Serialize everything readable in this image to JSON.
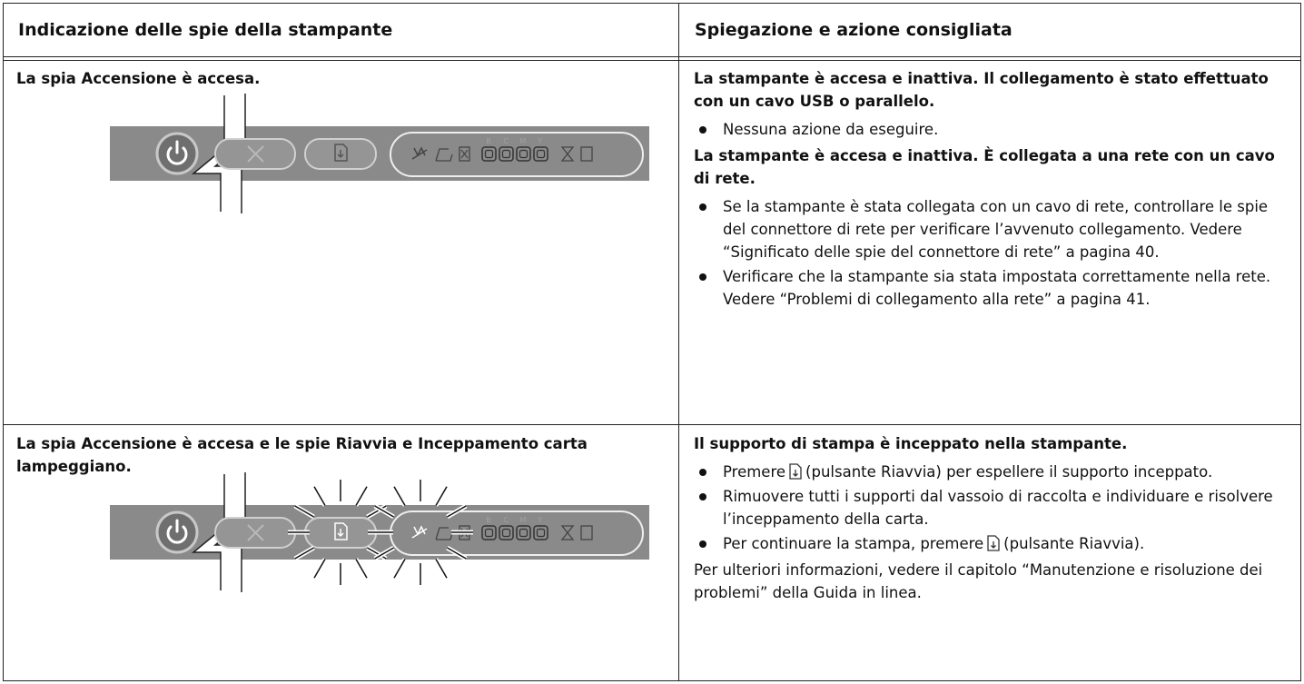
{
  "table": {
    "headers": [
      "Indicazione delle spie della stampante",
      "Spiegazione e azione consigliata"
    ],
    "rows": [
      {
        "indication": "La spia Accensione è accesa.",
        "explanation": [
          {
            "heading": "La stampante è accesa e inattiva. Il collegamento è stato effettuato con un cavo USB o parallelo.",
            "bullets": [
              "Nessuna azione da eseguire."
            ]
          },
          {
            "heading": "La stampante è accesa e inattiva. È collegata a una rete con un cavo di rete.",
            "bullets": [
              "Se la stampante è stata collegata con un cavo di rete, controllare le spie del connettore di rete per verificare l’avvenuto collegamento. Vedere “Significato delle spie del connettore di rete” a pagina 40.",
              "Verificare che la stampante sia stata impostata correttamente nella rete. Vedere “Problemi di collegamento alla rete” a pagina 41."
            ]
          }
        ]
      },
      {
        "indication": "La spia Accensione è accesa e le spie Riavvia e Inceppamento carta lampeggiano.",
        "explanation": [
          {
            "heading": "Il supporto di stampa è inceppato nella stampante.",
            "bullets": [
              {
                "before": "Premere",
                "after": "(pulsante Riavvia) per espellere il supporto inceppato."
              },
              "Rimuovere tutti i supporti dal vassoio di raccolta e individuare e risolvere l’inceppamento della carta.",
              {
                "before": "Per continuare la stampa, premere",
                "after": "(pulsante Riavvia)."
              }
            ]
          }
        ],
        "note": "Per ulteriori informazioni, vedere il capitolo “Manutenzione e risoluzione dei problemi” della Guida in linea."
      }
    ]
  },
  "panel": {
    "ink_labels": [
      "B",
      "C",
      "M",
      "Y"
    ]
  }
}
